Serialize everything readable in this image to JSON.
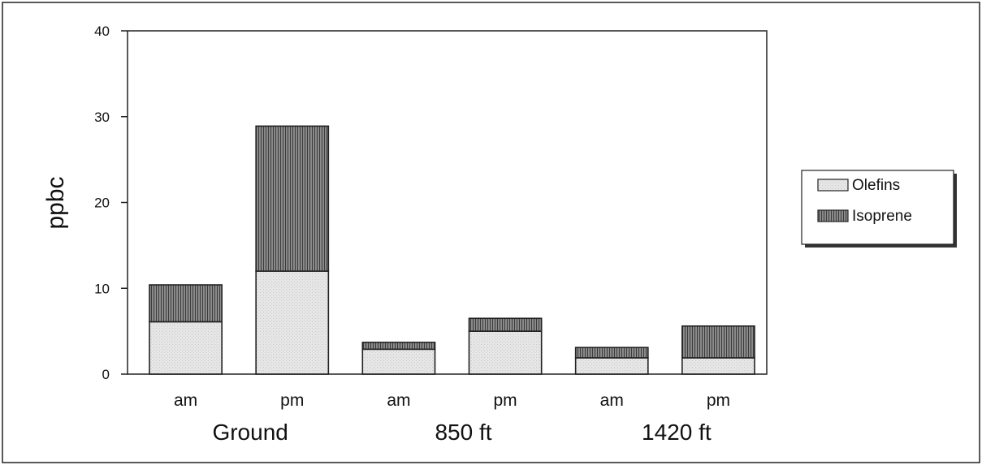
{
  "chart_data": {
    "type": "bar",
    "stacked": true,
    "categories": [
      "am",
      "pm",
      "am",
      "pm",
      "am",
      "pm"
    ],
    "groups": [
      {
        "label": "Ground",
        "categories": [
          "am",
          "pm"
        ]
      },
      {
        "label": "850 ft",
        "categories": [
          "am",
          "pm"
        ]
      },
      {
        "label": "1420 ft",
        "categories": [
          "am",
          "pm"
        ]
      }
    ],
    "series": [
      {
        "name": "Olefins",
        "values": [
          6.1,
          12.0,
          2.9,
          5.0,
          1.9,
          1.9
        ],
        "color": "#e4e4e4"
      },
      {
        "name": "Isoprene",
        "values": [
          4.3,
          16.9,
          0.8,
          1.5,
          1.2,
          3.7
        ],
        "color": "#6e6e6e"
      }
    ],
    "ylabel": "ppbc",
    "xlabel": "",
    "ylim": [
      0,
      40
    ],
    "yticks": [
      0,
      10,
      20,
      30,
      40
    ],
    "grid": false,
    "legend_position": "right"
  }
}
